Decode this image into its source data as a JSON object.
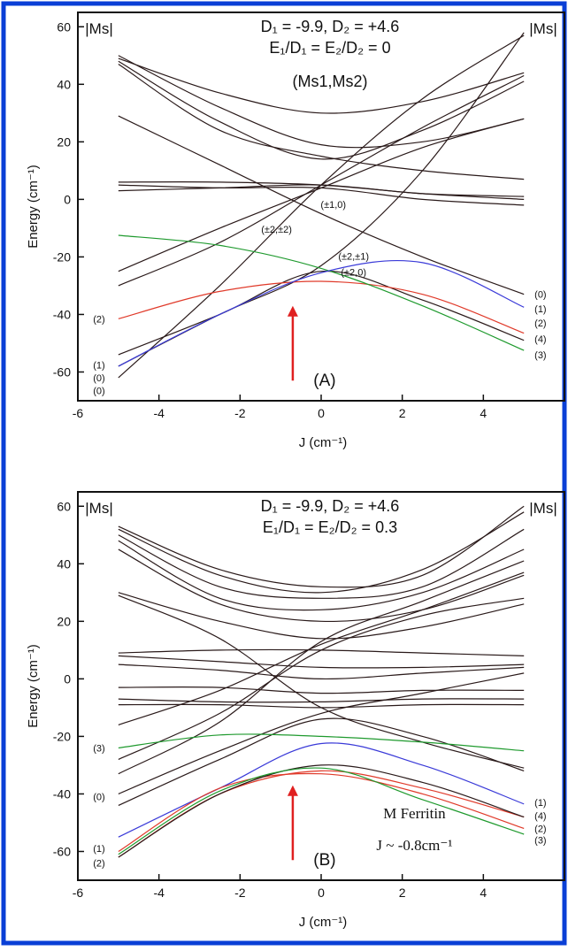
{
  "border_color": "#0a3fd6",
  "chart_data": [
    {
      "type": "line",
      "panel_label": "(A)",
      "ylabel": "Energy (cm⁻¹)",
      "xlabel": "J (cm⁻¹)",
      "xlim": [
        -6,
        6
      ],
      "ylim": [
        -70,
        65
      ],
      "xticks": [
        -6,
        -4,
        -2,
        0,
        2,
        4
      ],
      "yticks": [
        60,
        40,
        20,
        0,
        -20,
        -40,
        -60
      ],
      "grid": false,
      "title_lines": [
        "D₁ = -9.9, D₂ = +4.6",
        "E₁/D₁ = E₂/D₂ = 0"
      ],
      "subtitle": "(Ms1,Ms2)",
      "left_header": "|Ms|",
      "right_header": "|Ms|",
      "left_labels": [
        {
          "text": "(2)",
          "y": -41.5
        },
        {
          "text": "(1)",
          "y": -57.5
        },
        {
          "text": "(0)",
          "y": -62
        },
        {
          "text": "(0)",
          "y": -66.5
        }
      ],
      "right_labels": [
        {
          "text": "(0)",
          "y": -33
        },
        {
          "text": "(1)",
          "y": -38
        },
        {
          "text": "(2)",
          "y": -43
        },
        {
          "text": "(4)",
          "y": -48.5
        },
        {
          "text": "(3)",
          "y": -54
        }
      ],
      "annotations": [
        {
          "text": "(±1,0)",
          "x": 0.3,
          "y": -3
        },
        {
          "text": "(±2,±2)",
          "x": -1.1,
          "y": -11.5
        },
        {
          "text": "(±2,±1)",
          "x": 0.8,
          "y": -21
        },
        {
          "text": "(±2,0)",
          "x": 0.8,
          "y": -26.5
        }
      ],
      "arrow": {
        "x": -0.7,
        "y_from": -63,
        "y_to": -37,
        "color": "#e02020"
      },
      "series": [
        {
          "color": "#2a1a1a",
          "x": [
            -5,
            -2.5,
            0,
            2.5,
            5
          ],
          "y": [
            49,
            37,
            30,
            34,
            44
          ]
        },
        {
          "color": "#2a1a1a",
          "x": [
            -5,
            -2.5,
            0,
            2.5,
            5
          ],
          "y": [
            48,
            27,
            14,
            24,
            41
          ]
        },
        {
          "color": "#2a1a1a",
          "x": [
            -5,
            -2.5,
            0,
            2.5,
            5
          ],
          "y": [
            47,
            24,
            15,
            10,
            7
          ]
        },
        {
          "color": "#2a1a1a",
          "x": [
            -5,
            -2.5,
            0,
            2.5,
            5
          ],
          "y": [
            50,
            32,
            19,
            20,
            28
          ]
        },
        {
          "color": "#2a1a1a",
          "x": [
            -5,
            -2.5,
            0,
            2.5,
            5
          ],
          "y": [
            29,
            12,
            -5,
            -20,
            -33
          ]
        },
        {
          "color": "#2a1a1a",
          "x": [
            -5,
            -2.5,
            0,
            2.5,
            5
          ],
          "y": [
            6,
            6,
            5,
            2,
            0
          ]
        },
        {
          "color": "#2a1a1a",
          "x": [
            -5,
            -2.5,
            0,
            2.5,
            5
          ],
          "y": [
            5,
            4,
            4,
            0,
            -2
          ]
        },
        {
          "color": "#2a1a1a",
          "x": [
            -5,
            -2.5,
            0,
            2.5,
            5
          ],
          "y": [
            3,
            4,
            5,
            2,
            1
          ]
        },
        {
          "color": "#2a1a1a",
          "x": [
            -5,
            -2.5,
            0,
            2.5,
            5
          ],
          "y": [
            -25,
            -10,
            4,
            18,
            28
          ]
        },
        {
          "color": "#2a1a1a",
          "x": [
            -5,
            -2.5,
            0,
            2.5,
            5
          ],
          "y": [
            -30,
            -15,
            5,
            25,
            43
          ]
        },
        {
          "color": "#2a1a1a",
          "x": [
            -5,
            -2.5,
            0,
            2.5,
            5
          ],
          "y": [
            -58,
            -40,
            -23,
            10,
            58
          ]
        },
        {
          "color": "#2a1a1a",
          "x": [
            -5,
            -2.5,
            0,
            2.5,
            5
          ],
          "y": [
            -62,
            -30,
            5,
            35,
            57
          ]
        },
        {
          "color": "#2a1a1a",
          "x": [
            -5,
            -2.5,
            0,
            2.5,
            5
          ],
          "y": [
            -54,
            -40,
            -25,
            -35,
            -49
          ]
        },
        {
          "color": "#e03a2a",
          "x": [
            -5,
            -2.5,
            0,
            2.5,
            5
          ],
          "y": [
            -41.5,
            -32,
            -28.5,
            -33,
            -46.5
          ]
        },
        {
          "color": "#1f9a2e",
          "x": [
            -5,
            -2.5,
            0,
            2.5,
            5
          ],
          "y": [
            -12.5,
            -16,
            -24,
            -37,
            -52.5
          ]
        },
        {
          "color": "#3a3ad8",
          "x": [
            -5,
            -2.5,
            0,
            2.5,
            5
          ],
          "y": [
            -58,
            -40,
            -25.5,
            -22,
            -37.5
          ]
        }
      ]
    },
    {
      "type": "line",
      "panel_label": "(B)",
      "ylabel": "Energy (cm⁻¹)",
      "xlabel": "J (cm⁻¹)",
      "xlim": [
        -6,
        6
      ],
      "ylim": [
        -70,
        65
      ],
      "xticks": [
        -6,
        -4,
        -2,
        0,
        2,
        4
      ],
      "yticks": [
        60,
        40,
        20,
        0,
        -20,
        -40,
        -60
      ],
      "grid": false,
      "title_lines": [
        "D₁ = -9.9, D₂ = +4.6",
        "E₁/D₁ = E₂/D₂ = 0.3"
      ],
      "left_header": "|Ms|",
      "right_header": "|Ms|",
      "ferritin_lines": [
        "M Ferritin",
        "J ~ -0.8cm⁻¹"
      ],
      "left_labels": [
        {
          "text": "(3)",
          "y": -24
        },
        {
          "text": "(0)",
          "y": -41
        },
        {
          "text": "(1)",
          "y": -59
        },
        {
          "text": "(2)",
          "y": -64
        }
      ],
      "right_labels": [
        {
          "text": "(1)",
          "y": -43
        },
        {
          "text": "(4)",
          "y": -47.5
        },
        {
          "text": "(2)",
          "y": -52
        },
        {
          "text": "(3)",
          "y": -56
        }
      ],
      "arrow": {
        "x": -0.7,
        "y_from": -63,
        "y_to": -37,
        "color": "#e02020"
      },
      "series": [
        {
          "color": "#2a1a1a",
          "x": [
            -5,
            -2.5,
            0,
            2.5,
            5
          ],
          "y": [
            53,
            38,
            32,
            36,
            60
          ]
        },
        {
          "color": "#2a1a1a",
          "x": [
            -5,
            -2.5,
            0,
            2.5,
            5
          ],
          "y": [
            52,
            36,
            30,
            38,
            58
          ]
        },
        {
          "color": "#2a1a1a",
          "x": [
            -5,
            -2.5,
            0,
            2.5,
            5
          ],
          "y": [
            50,
            32,
            28,
            32,
            52
          ]
        },
        {
          "color": "#2a1a1a",
          "x": [
            -5,
            -2.5,
            0,
            2.5,
            5
          ],
          "y": [
            48,
            28,
            24,
            30,
            45
          ]
        },
        {
          "color": "#2a1a1a",
          "x": [
            -5,
            -2.5,
            0,
            2.5,
            5
          ],
          "y": [
            45,
            26,
            20,
            24,
            36
          ]
        },
        {
          "color": "#2a1a1a",
          "x": [
            -5,
            -2.5,
            0,
            2.5,
            5
          ],
          "y": [
            30,
            20,
            14,
            18,
            26
          ]
        },
        {
          "color": "#2a1a1a",
          "x": [
            -5,
            -2.5,
            0,
            2.5,
            5
          ],
          "y": [
            29,
            14,
            -10,
            -22,
            -31
          ]
        },
        {
          "color": "#2a1a1a",
          "x": [
            -5,
            -2.5,
            0,
            2.5,
            5
          ],
          "y": [
            9,
            10,
            10,
            9,
            8
          ]
        },
        {
          "color": "#2a1a1a",
          "x": [
            -5,
            -2.5,
            0,
            2.5,
            5
          ],
          "y": [
            8,
            6,
            4,
            4,
            5
          ]
        },
        {
          "color": "#2a1a1a",
          "x": [
            -5,
            -2.5,
            0,
            2.5,
            5
          ],
          "y": [
            5,
            3,
            0,
            2,
            4
          ]
        },
        {
          "color": "#2a1a1a",
          "x": [
            -5,
            -2.5,
            0,
            2.5,
            5
          ],
          "y": [
            -3,
            -3,
            -5,
            -4,
            -4
          ]
        },
        {
          "color": "#2a1a1a",
          "x": [
            -5,
            -2.5,
            0,
            2.5,
            5
          ],
          "y": [
            -7,
            -8,
            -8,
            -7,
            -7
          ]
        },
        {
          "color": "#2a1a1a",
          "x": [
            -5,
            -2.5,
            0,
            2.5,
            5
          ],
          "y": [
            -9,
            -9,
            -10,
            -9,
            -9
          ]
        },
        {
          "color": "#2a1a1a",
          "x": [
            -5,
            -2.5,
            0,
            2.5,
            5
          ],
          "y": [
            -16,
            -4,
            12,
            24,
            37
          ]
        },
        {
          "color": "#2a1a1a",
          "x": [
            -5,
            -2.5,
            0,
            2.5,
            5
          ],
          "y": [
            -28,
            -12,
            10,
            22,
            28
          ]
        },
        {
          "color": "#2a1a1a",
          "x": [
            -5,
            -2.5,
            0,
            2.5,
            5
          ],
          "y": [
            -33,
            -15,
            13,
            27,
            41
          ]
        },
        {
          "color": "#2a1a1a",
          "x": [
            -5,
            -2.5,
            0,
            2.5,
            5
          ],
          "y": [
            -40,
            -25,
            -12,
            -5,
            2
          ]
        },
        {
          "color": "#2a1a1a",
          "x": [
            -5,
            -2.5,
            0,
            2.5,
            5
          ],
          "y": [
            -44,
            -28,
            -14,
            -20,
            -32
          ]
        },
        {
          "color": "#1f9a2e",
          "x": [
            -5,
            -2.5,
            0,
            2.5,
            5
          ],
          "y": [
            -24,
            -19.5,
            -20,
            -22,
            -25
          ]
        },
        {
          "color": "#3a3ad8",
          "x": [
            -5,
            -2.5,
            0,
            2.5,
            5
          ],
          "y": [
            -55,
            -38,
            -22.5,
            -30,
            -43.5
          ]
        },
        {
          "color": "#e03a2a",
          "x": [
            -5,
            -2.5,
            0,
            2.5,
            5
          ],
          "y": [
            -60,
            -38,
            -33,
            -40,
            -52
          ]
        },
        {
          "color": "#e03a2a",
          "x": [
            -5,
            -2.5,
            0,
            2.5,
            5
          ],
          "y": [
            -62,
            -40,
            -32,
            -38,
            -48
          ]
        },
        {
          "color": "#2a1a1a",
          "x": [
            -5,
            -2.5,
            0,
            2.5,
            5
          ],
          "y": [
            -62,
            -40,
            -30,
            -36,
            -48
          ]
        },
        {
          "color": "#1f9a2e",
          "x": [
            -5,
            -2.5,
            0,
            2.5,
            5
          ],
          "y": [
            -61,
            -39,
            -31,
            -42,
            -54
          ]
        }
      ]
    }
  ]
}
